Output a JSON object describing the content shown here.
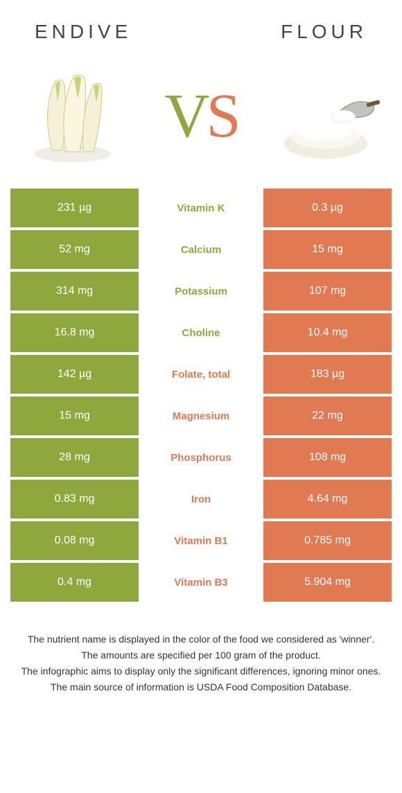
{
  "colors": {
    "green": "#8fa83e",
    "orange": "#e17a53",
    "text": "#444444",
    "white": "#ffffff"
  },
  "header": {
    "left_title": "Endive",
    "right_title": "Flour"
  },
  "vs": {
    "v": "V",
    "s": "S"
  },
  "rows": [
    {
      "left": "231 µg",
      "label": "Vitamin K",
      "right": "0.3 µg",
      "winner": "left"
    },
    {
      "left": "52 mg",
      "label": "Calcium",
      "right": "15 mg",
      "winner": "left"
    },
    {
      "left": "314 mg",
      "label": "Potassium",
      "right": "107 mg",
      "winner": "left"
    },
    {
      "left": "16.8 mg",
      "label": "Choline",
      "right": "10.4 mg",
      "winner": "left"
    },
    {
      "left": "142 µg",
      "label": "Folate, total",
      "right": "183 µg",
      "winner": "right"
    },
    {
      "left": "15 mg",
      "label": "Magnesium",
      "right": "22 mg",
      "winner": "right"
    },
    {
      "left": "28 mg",
      "label": "Phosphorus",
      "right": "108 mg",
      "winner": "right"
    },
    {
      "left": "0.83 mg",
      "label": "Iron",
      "right": "4.64 mg",
      "winner": "right"
    },
    {
      "left": "0.08 mg",
      "label": "Vitamin B1",
      "right": "0.785 mg",
      "winner": "right"
    },
    {
      "left": "0.4 mg",
      "label": "Vitamin B3",
      "right": "5.904 mg",
      "winner": "right"
    }
  ],
  "footnote": {
    "line1": "The nutrient name is displayed in the color of the food we considered as 'winner'.",
    "line2": "The amounts are specified per 100 gram of the product.",
    "line3": "The infographic aims to display only the significant differences, ignoring minor ones.",
    "line4": "The main source of information is USDA Food Composition Database."
  }
}
